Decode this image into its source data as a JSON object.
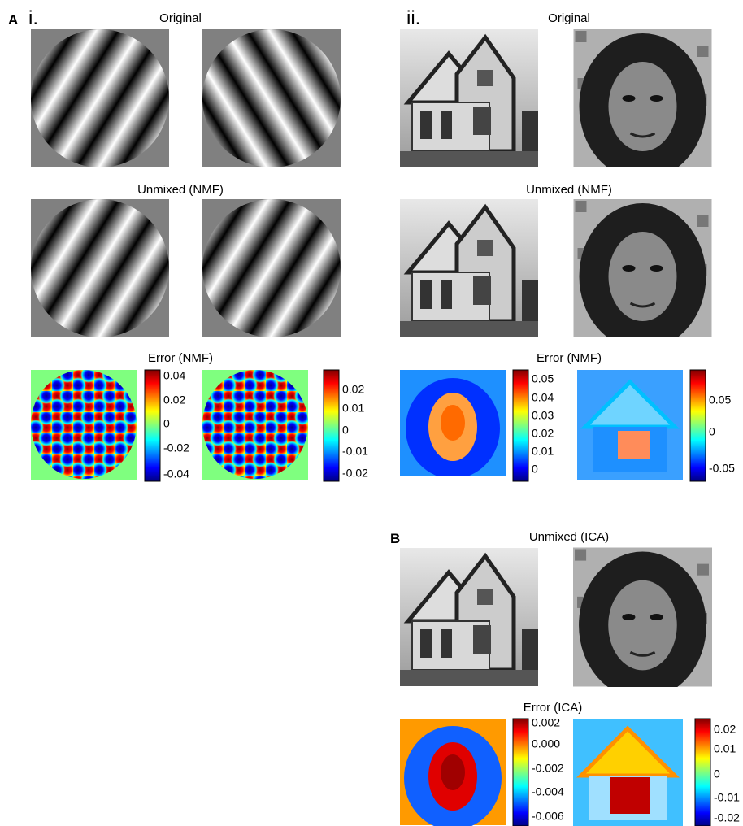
{
  "figure_a": {
    "label": "A",
    "panel_i": {
      "label": "i.",
      "original_title": "Original",
      "unmixed_title": "Unmixed (NMF)",
      "error_title": "Error (NMF)",
      "colorbars": [
        [
          "0.04",
          "0.02",
          "0",
          "-0.02",
          "-0.04"
        ],
        [
          "0.02",
          "0.01",
          "0",
          "-0.01",
          "-0.02"
        ]
      ]
    },
    "panel_ii": {
      "label": "ii.",
      "original_title": "Original",
      "unmixed_title": "Unmixed (NMF)",
      "error_title": "Error (NMF)",
      "colorbars": [
        [
          "0.05",
          "0.04",
          "0.03",
          "0.02",
          "0.01",
          "0"
        ],
        [
          "0.05",
          "0",
          "-0.05"
        ]
      ]
    }
  },
  "figure_b": {
    "label": "B",
    "unmixed_title": "Unmixed (ICA)",
    "error_title": "Error (ICA)",
    "colorbars": [
      [
        "0.002",
        "0.000",
        "-0.002",
        "-0.004",
        "-0.006"
      ],
      [
        "0.02",
        "0.01",
        "0",
        "-0.01",
        "-0.02"
      ]
    ]
  }
}
